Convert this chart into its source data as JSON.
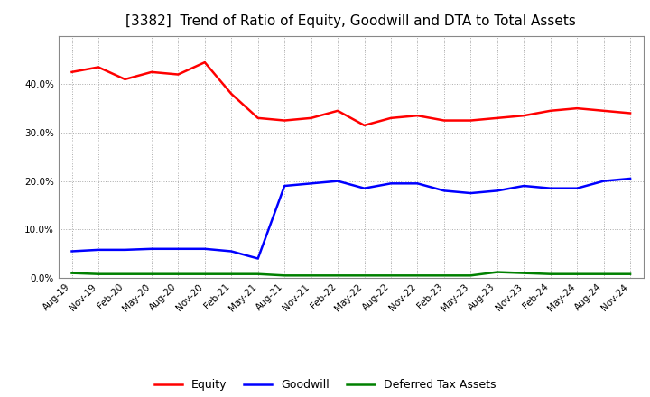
{
  "title": "[3382]  Trend of Ratio of Equity, Goodwill and DTA to Total Assets",
  "x_labels": [
    "Aug-19",
    "Nov-19",
    "Feb-20",
    "May-20",
    "Aug-20",
    "Nov-20",
    "Feb-21",
    "May-21",
    "Aug-21",
    "Nov-21",
    "Feb-22",
    "May-22",
    "Aug-22",
    "Nov-22",
    "Feb-23",
    "May-23",
    "Aug-23",
    "Nov-23",
    "Feb-24",
    "May-24",
    "Aug-24",
    "Nov-24"
  ],
  "equity": [
    42.5,
    43.5,
    41.0,
    42.5,
    42.0,
    44.5,
    38.0,
    33.0,
    32.5,
    33.0,
    34.5,
    31.5,
    33.0,
    33.5,
    32.5,
    32.5,
    33.0,
    33.5,
    34.5,
    35.0,
    34.5,
    34.0
  ],
  "goodwill": [
    5.5,
    5.8,
    5.8,
    6.0,
    6.0,
    6.0,
    5.5,
    4.0,
    19.0,
    19.5,
    20.0,
    18.5,
    19.5,
    19.5,
    18.0,
    17.5,
    18.0,
    19.0,
    18.5,
    18.5,
    20.0,
    20.5
  ],
  "dta": [
    1.0,
    0.8,
    0.8,
    0.8,
    0.8,
    0.8,
    0.8,
    0.8,
    0.5,
    0.5,
    0.5,
    0.5,
    0.5,
    0.5,
    0.5,
    0.5,
    1.2,
    1.0,
    0.8,
    0.8,
    0.8,
    0.8
  ],
  "equity_color": "#ff0000",
  "goodwill_color": "#0000ff",
  "dta_color": "#008000",
  "background_color": "#ffffff",
  "plot_bg_color": "#ffffff",
  "grid_color": "#aaaaaa",
  "ylim": [
    0,
    50
  ],
  "yticks": [
    0,
    10,
    20,
    30,
    40
  ],
  "legend_labels": [
    "Equity",
    "Goodwill",
    "Deferred Tax Assets"
  ],
  "title_fontsize": 11,
  "tick_fontsize": 7.5,
  "line_width": 1.8
}
